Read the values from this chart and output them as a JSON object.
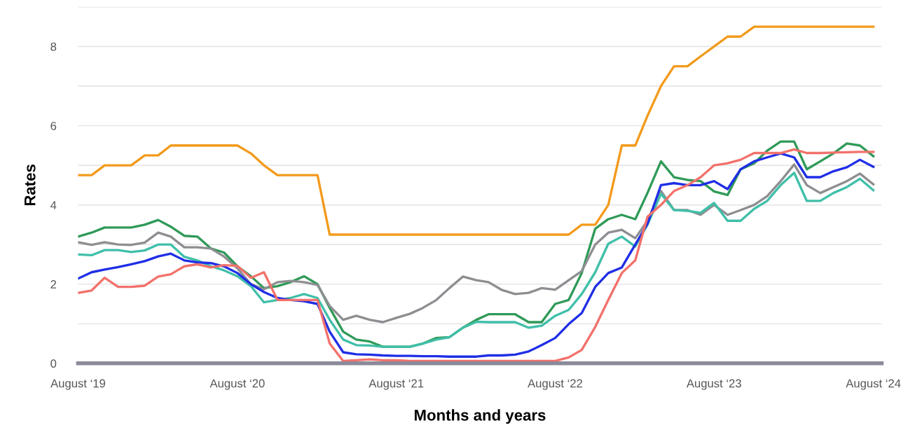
{
  "chart_data": {
    "type": "line",
    "xlabel": "Months and years",
    "ylabel": "Rates",
    "x": [
      "2019-08",
      "2019-09",
      "2019-10",
      "2019-11",
      "2019-12",
      "2020-01",
      "2020-02",
      "2020-03",
      "2020-04",
      "2020-05",
      "2020-06",
      "2020-07",
      "2020-08",
      "2020-09",
      "2020-10",
      "2020-11",
      "2020-12",
      "2021-01",
      "2021-02",
      "2021-03",
      "2021-04",
      "2021-05",
      "2021-06",
      "2021-07",
      "2021-08",
      "2021-09",
      "2021-10",
      "2021-11",
      "2021-12",
      "2022-01",
      "2022-02",
      "2022-03",
      "2022-04",
      "2022-05",
      "2022-06",
      "2022-07",
      "2022-08",
      "2022-09",
      "2022-10",
      "2022-11",
      "2022-12",
      "2023-01",
      "2023-02",
      "2023-03",
      "2023-04",
      "2023-05",
      "2023-06",
      "2023-07",
      "2023-08",
      "2023-09",
      "2023-10",
      "2023-11",
      "2023-12",
      "2024-01",
      "2024-02",
      "2024-03",
      "2024-04",
      "2024-05",
      "2024-06",
      "2024-07",
      "2024-08"
    ],
    "series": [
      {
        "color": "#f39a1b",
        "values": [
          4.75,
          4.75,
          5.0,
          5.0,
          5.0,
          5.25,
          5.25,
          5.5,
          5.5,
          5.5,
          5.5,
          5.5,
          5.5,
          5.3,
          5.0,
          4.75,
          4.75,
          4.75,
          4.75,
          3.25,
          3.25,
          3.25,
          3.25,
          3.25,
          3.25,
          3.25,
          3.25,
          3.25,
          3.25,
          3.25,
          3.25,
          3.25,
          3.25,
          3.25,
          3.25,
          3.25,
          3.25,
          3.25,
          3.5,
          3.5,
          4.0,
          5.5,
          5.5,
          6.25,
          7.0,
          7.5,
          7.5,
          7.75,
          8.0,
          8.25,
          8.25,
          8.5,
          8.5,
          8.5,
          8.5,
          8.5,
          8.5,
          8.5,
          8.5,
          8.5,
          8.5
        ]
      },
      {
        "color": "#2f9a58",
        "values": [
          3.2,
          3.3,
          3.43,
          3.43,
          3.43,
          3.5,
          3.62,
          3.45,
          3.22,
          3.2,
          2.9,
          2.8,
          2.45,
          2.2,
          1.9,
          1.95,
          2.05,
          2.2,
          2.0,
          1.4,
          0.8,
          0.6,
          0.55,
          0.42,
          0.42,
          0.42,
          0.5,
          0.64,
          0.66,
          0.9,
          1.1,
          1.24,
          1.24,
          1.24,
          1.04,
          1.04,
          1.5,
          1.6,
          2.28,
          3.4,
          3.64,
          3.75,
          3.64,
          4.3,
          5.1,
          4.7,
          4.63,
          4.6,
          4.34,
          4.25,
          4.9,
          5.05,
          5.37,
          5.6,
          5.6,
          4.9,
          5.1,
          5.3,
          5.55,
          5.5,
          5.23
        ]
      },
      {
        "color": "#8e8e92",
        "values": [
          3.06,
          2.99,
          3.06,
          3.0,
          2.99,
          3.05,
          3.3,
          3.2,
          2.93,
          2.93,
          2.9,
          2.7,
          2.4,
          2.0,
          1.87,
          2.05,
          2.08,
          2.05,
          1.98,
          1.45,
          1.1,
          1.2,
          1.1,
          1.04,
          1.15,
          1.25,
          1.4,
          1.6,
          1.9,
          2.19,
          2.1,
          2.05,
          1.85,
          1.75,
          1.78,
          1.9,
          1.86,
          2.1,
          2.33,
          3.0,
          3.3,
          3.37,
          3.16,
          3.6,
          4.35,
          3.87,
          3.87,
          3.75,
          4.0,
          3.75,
          3.87,
          4.0,
          4.22,
          4.6,
          5.02,
          4.5,
          4.3,
          4.45,
          4.6,
          4.79,
          4.52
        ]
      },
      {
        "color": "#40bfa9",
        "values": [
          2.75,
          2.73,
          2.86,
          2.86,
          2.81,
          2.85,
          3.0,
          3.0,
          2.69,
          2.6,
          2.45,
          2.35,
          2.2,
          1.95,
          1.54,
          1.6,
          1.65,
          1.75,
          1.65,
          1.1,
          0.6,
          0.46,
          0.45,
          0.42,
          0.42,
          0.42,
          0.5,
          0.6,
          0.66,
          0.9,
          1.05,
          1.04,
          1.04,
          1.04,
          0.9,
          0.95,
          1.2,
          1.35,
          1.75,
          2.3,
          3.02,
          3.2,
          2.95,
          3.5,
          4.28,
          3.87,
          3.85,
          3.8,
          4.05,
          3.6,
          3.6,
          3.9,
          4.1,
          4.5,
          4.81,
          4.1,
          4.1,
          4.3,
          4.45,
          4.66,
          4.37
        ]
      },
      {
        "color": "#1f2ee6",
        "values": [
          2.14,
          2.3,
          2.37,
          2.43,
          2.5,
          2.58,
          2.7,
          2.77,
          2.6,
          2.55,
          2.53,
          2.45,
          2.28,
          2.0,
          1.8,
          1.65,
          1.6,
          1.57,
          1.5,
          0.8,
          0.28,
          0.23,
          0.22,
          0.2,
          0.19,
          0.19,
          0.18,
          0.18,
          0.17,
          0.17,
          0.17,
          0.2,
          0.2,
          0.22,
          0.3,
          0.46,
          0.64,
          0.99,
          1.27,
          1.93,
          2.28,
          2.42,
          3.0,
          3.52,
          4.5,
          4.55,
          4.5,
          4.5,
          4.6,
          4.4,
          4.9,
          5.1,
          5.2,
          5.3,
          5.2,
          4.7,
          4.7,
          4.85,
          4.95,
          5.14,
          4.96
        ]
      },
      {
        "color": "#f2716b",
        "values": [
          1.78,
          1.84,
          2.16,
          1.93,
          1.93,
          1.96,
          2.19,
          2.25,
          2.45,
          2.5,
          2.42,
          2.48,
          2.46,
          2.16,
          2.3,
          1.6,
          1.6,
          1.6,
          1.6,
          0.5,
          0.06,
          0.08,
          0.1,
          0.08,
          0.08,
          0.06,
          0.06,
          0.06,
          0.06,
          0.06,
          0.06,
          0.06,
          0.06,
          0.06,
          0.06,
          0.06,
          0.06,
          0.15,
          0.34,
          0.92,
          1.6,
          2.28,
          2.6,
          3.7,
          4.0,
          4.35,
          4.5,
          4.7,
          5.0,
          5.05,
          5.14,
          5.31,
          5.31,
          5.31,
          5.4,
          5.31,
          5.31,
          5.32,
          5.33,
          5.34,
          5.34
        ]
      }
    ],
    "xlim": [
      "2019-08-01",
      "2024-08-20"
    ],
    "xticks": [
      {
        "value": "2019-08",
        "label": "August ‘19"
      },
      {
        "value": "2020-08",
        "label": "August ‘20"
      },
      {
        "value": "2021-08",
        "label": "August ‘21"
      },
      {
        "value": "2022-08",
        "label": "August ‘22"
      },
      {
        "value": "2023-08",
        "label": "August ‘23"
      },
      {
        "value": "2024-08",
        "label": "August ‘24"
      }
    ],
    "ylim": [
      0,
      9
    ],
    "yticks": [
      0,
      {
        "value": 1,
        "label": null
      },
      2,
      {
        "value": 3,
        "label": null
      },
      4,
      {
        "value": 5,
        "label": null
      },
      6,
      {
        "value": 7,
        "label": null
      },
      8,
      {
        "value": 9,
        "label": null
      }
    ],
    "grid": "y",
    "marker": "none",
    "line_style": "solid"
  }
}
